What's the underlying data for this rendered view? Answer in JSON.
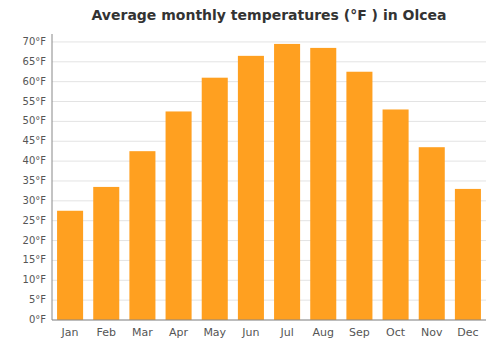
{
  "chart_data": {
    "type": "bar",
    "title": "Average monthly temperatures (°F ) in Olcea",
    "categories": [
      "Jan",
      "Feb",
      "Mar",
      "Apr",
      "May",
      "Jun",
      "Jul",
      "Aug",
      "Sep",
      "Oct",
      "Nov",
      "Dec"
    ],
    "values": [
      27.5,
      33.5,
      42.5,
      52.5,
      61.0,
      66.5,
      69.5,
      68.5,
      62.5,
      53.0,
      43.5,
      33.0
    ],
    "color": "#FFA020",
    "ylim": [
      0,
      72
    ],
    "yticks": [
      {
        "value": 0,
        "label": "0°F"
      },
      {
        "value": 5,
        "label": "5°F"
      },
      {
        "value": 10,
        "label": "10°F"
      },
      {
        "value": 15,
        "label": "15°F"
      },
      {
        "value": 20,
        "label": "20°F"
      },
      {
        "value": 25,
        "label": "25°F"
      },
      {
        "value": 30,
        "label": "30°F"
      },
      {
        "value": 35,
        "label": "35°F"
      },
      {
        "value": 40,
        "label": "40°F"
      },
      {
        "value": 45,
        "label": "45°F"
      },
      {
        "value": 50,
        "label": "50°F"
      },
      {
        "value": 55,
        "label": "55°F"
      },
      {
        "value": 60,
        "label": "60°F"
      },
      {
        "value": 65,
        "label": "65°F"
      },
      {
        "value": 70,
        "label": "70°F"
      }
    ],
    "grid": true
  }
}
